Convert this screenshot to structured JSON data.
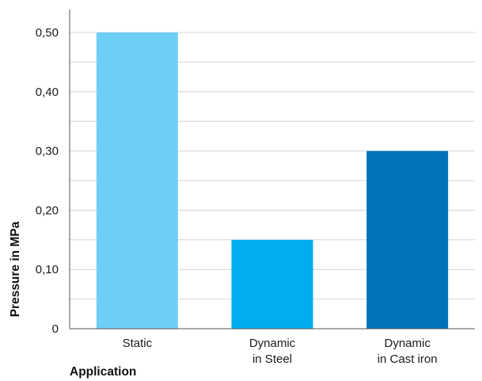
{
  "chart_data": {
    "type": "bar",
    "categories": [
      [
        "Static"
      ],
      [
        "Dynamic",
        "in Steel"
      ],
      [
        "Dynamic",
        "in Cast iron"
      ]
    ],
    "values": [
      0.5,
      0.15,
      0.3
    ],
    "colors": [
      "#6dcff6",
      "#00aeef",
      "#0072bc"
    ],
    "xlabel": "Application",
    "ylabel": "Pressure in MPa",
    "ylim": [
      0,
      0.5
    ],
    "yticks": [
      {
        "value": 0,
        "label": "0"
      },
      {
        "value": 0.1,
        "label": "0,10"
      },
      {
        "value": 0.2,
        "label": "0,20"
      },
      {
        "value": 0.3,
        "label": "0,30"
      },
      {
        "value": 0.4,
        "label": "0,40"
      },
      {
        "value": 0.5,
        "label": "0,50"
      }
    ],
    "minor_grid_step": 0.05,
    "grid": true,
    "legend": "none"
  }
}
